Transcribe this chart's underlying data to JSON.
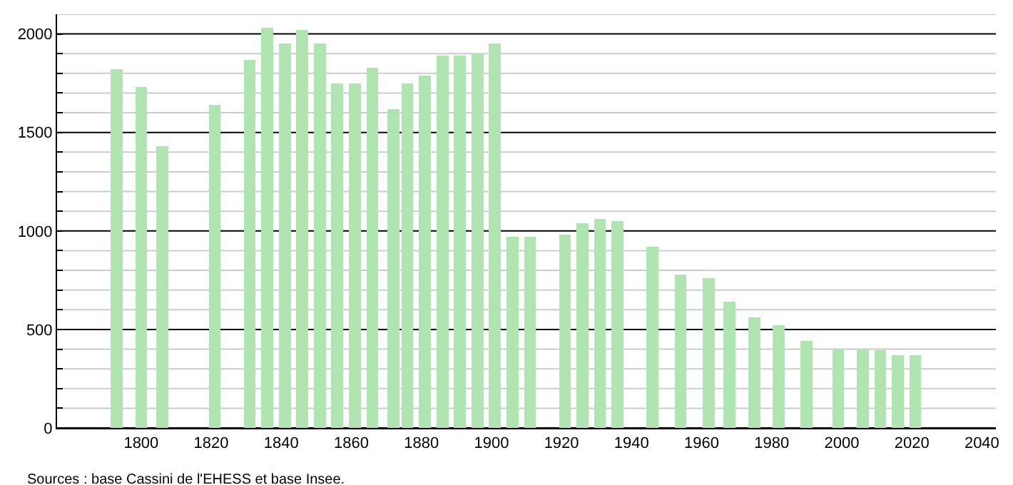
{
  "chart_data": {
    "type": "bar",
    "x": [
      1793,
      1800,
      1806,
      1821,
      1831,
      1836,
      1841,
      1846,
      1851,
      1856,
      1861,
      1866,
      1872,
      1876,
      1881,
      1886,
      1891,
      1896,
      1901,
      1906,
      1911,
      1921,
      1926,
      1931,
      1936,
      1946,
      1954,
      1962,
      1968,
      1975,
      1982,
      1990,
      1999,
      2006,
      2011,
      2016,
      2021
    ],
    "values": [
      1820,
      1730,
      1430,
      1640,
      1870,
      2030,
      1950,
      2020,
      1950,
      1750,
      1750,
      1830,
      1620,
      1750,
      1790,
      1890,
      1890,
      1900,
      1950,
      970,
      970,
      980,
      1040,
      1060,
      1050,
      920,
      780,
      760,
      640,
      560,
      520,
      440,
      400,
      400,
      395,
      370,
      370
    ],
    "color": "#b0e4b0",
    "xlim": [
      1776,
      2044
    ],
    "xticks": [
      1800,
      1820,
      1840,
      1860,
      1880,
      1900,
      1920,
      1940,
      1960,
      1980,
      2000,
      2020,
      2040
    ],
    "ylim": [
      0,
      2100
    ],
    "yticks": [
      0,
      {
        "value": 100,
        "label": null
      },
      {
        "value": 200,
        "label": null
      },
      {
        "value": 300,
        "label": null
      },
      {
        "value": 400,
        "label": null
      },
      500,
      {
        "value": 600,
        "label": null
      },
      {
        "value": 700,
        "label": null
      },
      {
        "value": 800,
        "label": null
      },
      {
        "value": 900,
        "label": null
      },
      1000,
      {
        "value": 1100,
        "label": null
      },
      {
        "value": 1200,
        "label": null
      },
      {
        "value": 1300,
        "label": null
      },
      {
        "value": 1400,
        "label": null
      },
      1500,
      {
        "value": 1600,
        "label": null
      },
      {
        "value": 1700,
        "label": null
      },
      {
        "value": 1800,
        "label": null
      },
      {
        "value": 1900,
        "label": null
      },
      2000,
      {
        "value": 2100,
        "label": null
      }
    ],
    "grid": true,
    "annotations": [
      "Sources : base Cassini de l'EHESS et base Insee."
    ]
  }
}
